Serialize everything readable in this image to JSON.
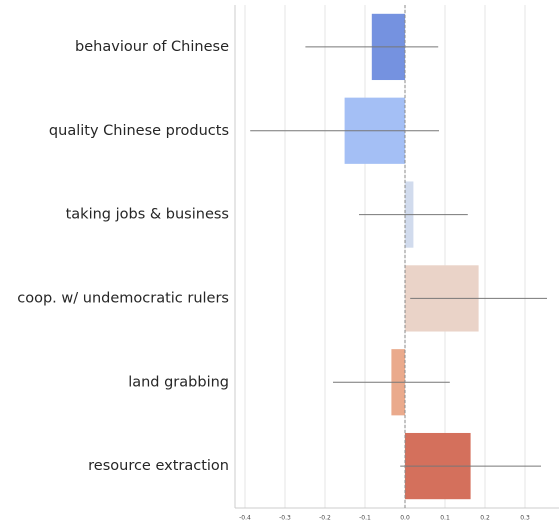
{
  "chart_data": {
    "type": "barh",
    "categories": [
      "behaviour of Chinese",
      "quality Chinese products",
      "taking jobs & business",
      "coop. w/ undemocratic rulers",
      "land grabbing",
      "resource extraction"
    ],
    "values": [
      -0.083,
      -0.151,
      0.021,
      0.184,
      -0.034,
      0.164
    ],
    "errors": [
      0.166,
      0.236,
      0.136,
      0.171,
      0.146,
      0.176
    ],
    "colors": [
      "#7592e0",
      "#a4bff5",
      "#d1dbed",
      "#ead3c8",
      "#eaaa8c",
      "#d4705c"
    ],
    "xlim": [
      -0.425,
      0.385
    ],
    "xticks": [
      -0.4,
      -0.3,
      -0.2,
      -0.1,
      {
        "value": 0,
        "label": "0.0"
      },
      0.1,
      0.2,
      0.3
    ],
    "grid": true
  }
}
